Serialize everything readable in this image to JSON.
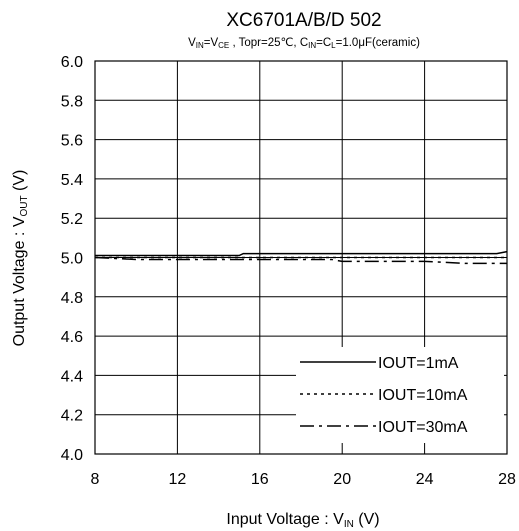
{
  "chart_data": {
    "type": "line",
    "title": "XC6701A/B/D 502",
    "subtitle": {
      "prefix": "V",
      "sub1": "IN",
      "mid1": "=V",
      "sub2": "CE",
      "mid2": " , Topr=25℃, C",
      "sub3": "IN",
      "mid3": "=C",
      "sub4": "L",
      "suffix": "=1.0μF(ceramic)"
    },
    "xlabel": {
      "prefix": "Input Voltage : V",
      "sub": "IN",
      "suffix": " (V)"
    },
    "ylabel": {
      "prefix": "Output Voltage : V",
      "sub": "OUT",
      "suffix": " (V)"
    },
    "xlim": [
      8,
      28
    ],
    "ylim": [
      4.0,
      6.0
    ],
    "x_ticks": [
      8,
      12,
      16,
      20,
      24,
      28
    ],
    "y_ticks": [
      4.0,
      4.2,
      4.4,
      4.6,
      4.8,
      5.0,
      5.2,
      5.4,
      5.6,
      5.8,
      6.0
    ],
    "x_tick_labels": [
      "8",
      "12",
      "16",
      "20",
      "24",
      "28"
    ],
    "y_tick_labels": [
      "4.0",
      "4.2",
      "4.4",
      "4.6",
      "4.8",
      "5.0",
      "5.2",
      "5.4",
      "5.6",
      "5.8",
      "6.0"
    ],
    "grid": true,
    "legend_position": "bottom-right",
    "series": [
      {
        "name": "IOUT=1mA",
        "style": "solid",
        "x": [
          8,
          10,
          12,
          14,
          15,
          15.2,
          16,
          18,
          20,
          22,
          24,
          26,
          27.5,
          28
        ],
        "y": [
          5.01,
          5.01,
          5.01,
          5.01,
          5.01,
          5.02,
          5.02,
          5.02,
          5.02,
          5.02,
          5.02,
          5.02,
          5.02,
          5.03
        ]
      },
      {
        "name": "IOUT=10mA",
        "style": "dotted",
        "x": [
          8,
          10,
          12,
          14,
          16,
          18,
          20,
          22,
          24,
          26,
          28
        ],
        "y": [
          5.0,
          5.0,
          5.0,
          5.0,
          5.0,
          5.0,
          5.0,
          5.0,
          5.0,
          5.0,
          5.0
        ]
      },
      {
        "name": "IOUT=30mA",
        "style": "dashdot",
        "x": [
          8,
          10,
          12,
          14,
          16,
          18,
          19.5,
          20,
          22,
          24,
          26,
          26.5,
          28
        ],
        "y": [
          5.0,
          4.99,
          4.99,
          4.99,
          4.99,
          4.99,
          4.99,
          4.98,
          4.98,
          4.98,
          4.97,
          4.97,
          4.97
        ]
      }
    ]
  }
}
